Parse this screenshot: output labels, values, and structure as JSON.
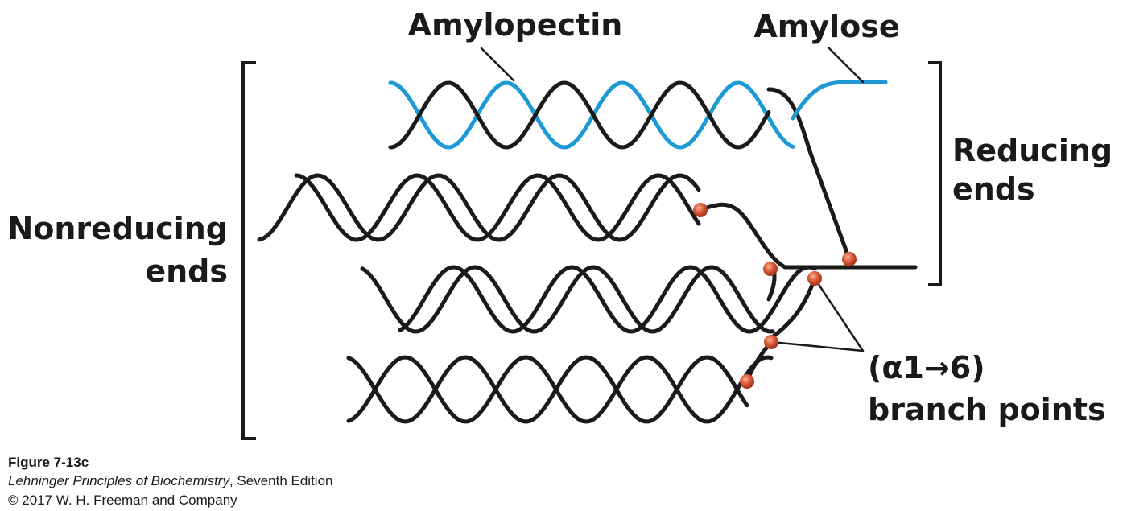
{
  "labels": {
    "amylopectin": "Amylopectin",
    "amylose": "Amylose",
    "reducing_line1": "Reducing",
    "reducing_line2": "ends",
    "nonreducing_line1": "Nonreducing",
    "nonreducing_line2": "ends",
    "branch_line1": "(α1→6)",
    "branch_line2": "branch points"
  },
  "caption": {
    "figure": "Figure 7-13c",
    "book_title": "Lehninger Principles of Biochemistry",
    "book_edition": ", Seventh Edition",
    "copyright": "© 2017 W. H. Freeman and Company"
  },
  "colors": {
    "amylopectin_strand": "#1a1a1a",
    "amylose_strand": "#1d9ad6",
    "branch_point": "#e0603e",
    "text": "#1a1a1a"
  }
}
